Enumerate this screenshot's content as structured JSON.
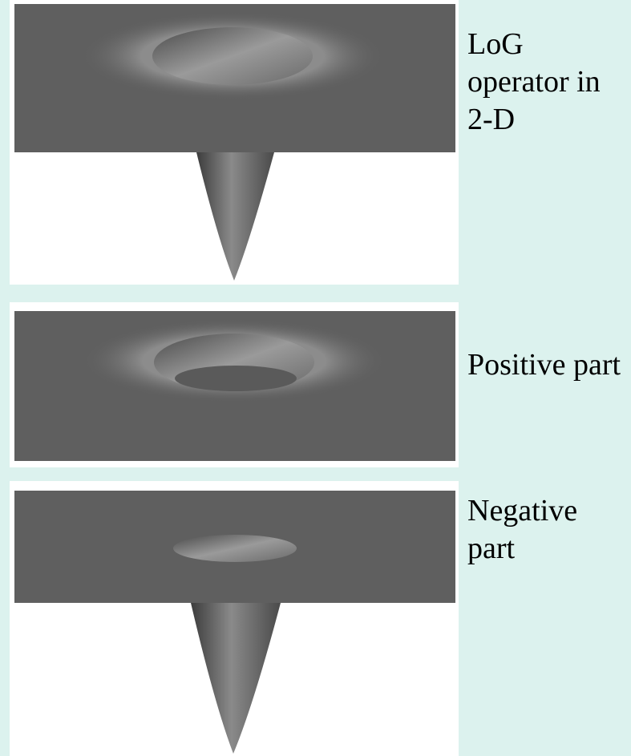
{
  "panels": [
    {
      "caption": "LoG operator in 2-D"
    },
    {
      "caption": "Positive part"
    },
    {
      "caption": "Negative part"
    }
  ]
}
